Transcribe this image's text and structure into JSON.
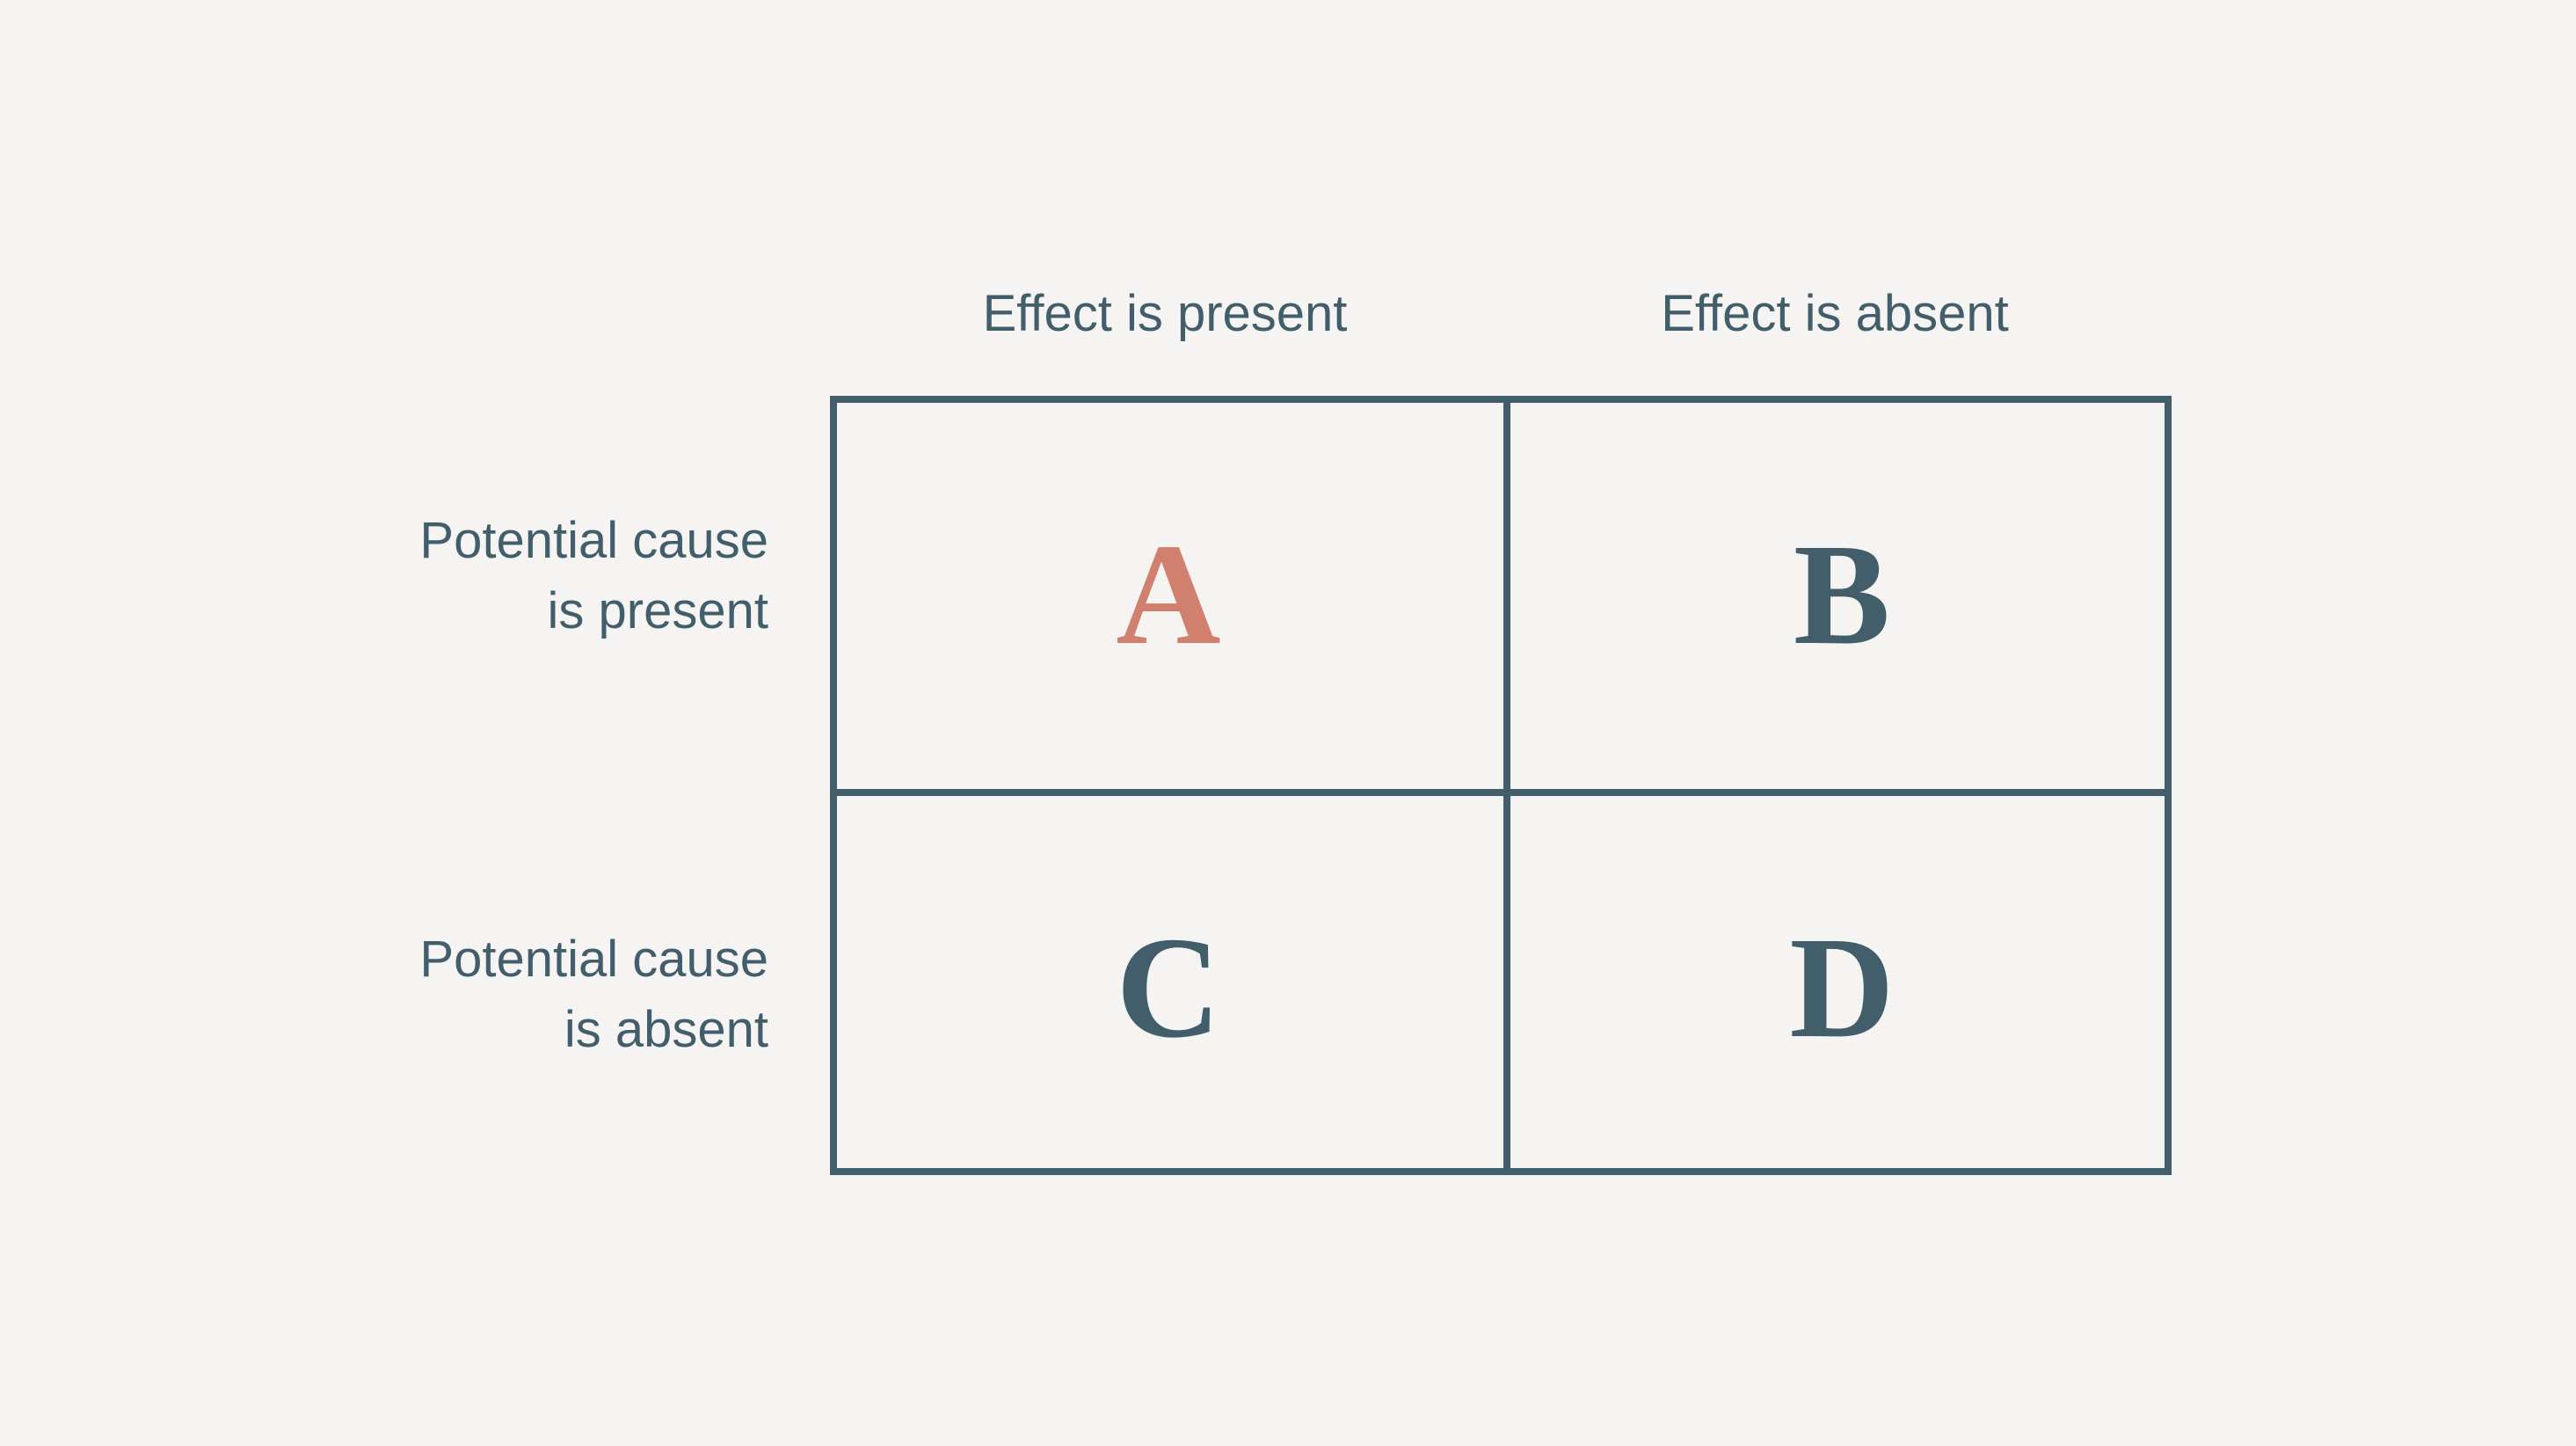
{
  "columns": [
    "Effect is present",
    "Effect is absent"
  ],
  "rows": [
    {
      "line1": "Potential cause",
      "line2": "is present"
    },
    {
      "line1": "Potential cause",
      "line2": "is absent"
    }
  ],
  "cells": [
    {
      "label": "A",
      "highlighted": true
    },
    {
      "label": "B",
      "highlighted": false
    },
    {
      "label": "C",
      "highlighted": false
    },
    {
      "label": "D",
      "highlighted": false
    }
  ],
  "colors": {
    "background": "#f5f4f2",
    "line": "#425e6b",
    "highlight": "#d0806c"
  }
}
